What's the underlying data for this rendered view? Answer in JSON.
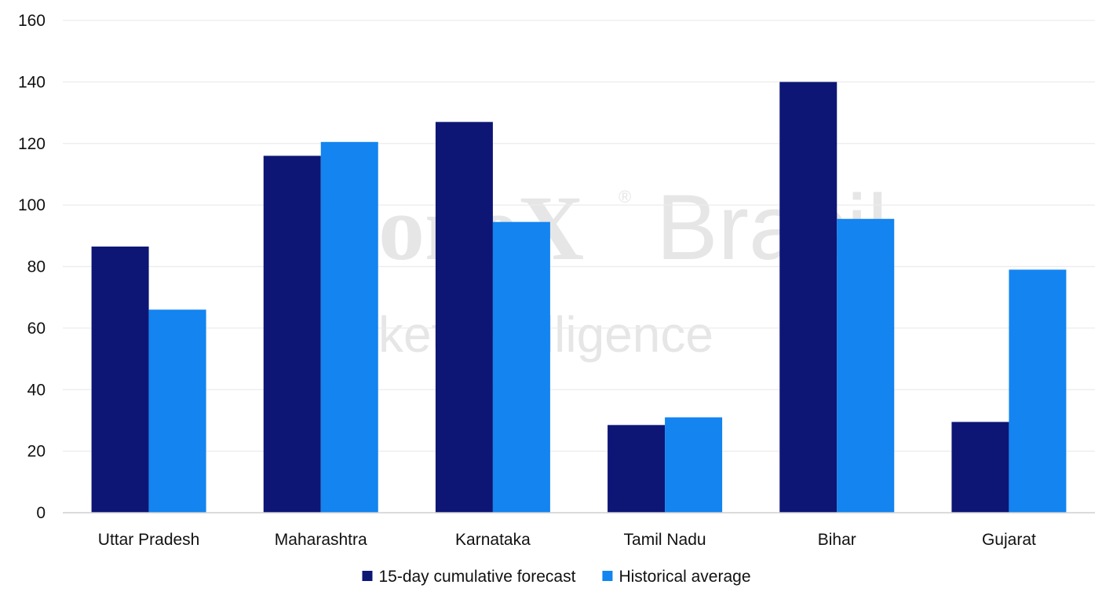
{
  "watermark": {
    "line1_part_a": "oneX",
    "line1_reg": "®",
    "line1_part_b": "Brasil",
    "line2": "ket Intelligence"
  },
  "chart_data": {
    "type": "bar",
    "title": "",
    "xlabel": "",
    "ylabel": "",
    "categories": [
      "Uttar Pradesh",
      "Maharashtra",
      "Karnataka",
      "Tamil Nadu",
      "Bihar",
      "Gujarat"
    ],
    "series": [
      {
        "name": "15-day cumulative forecast",
        "color": "#0d1675",
        "values": [
          86.5,
          116,
          127,
          28.5,
          140,
          29.5
        ]
      },
      {
        "name": "Historical average",
        "color": "#1384f0",
        "values": [
          66,
          120.5,
          94.5,
          31,
          95.5,
          79
        ]
      }
    ],
    "ylim": [
      0,
      160
    ],
    "yticks": [
      0,
      20,
      40,
      60,
      80,
      100,
      120,
      140,
      160
    ],
    "grid": true,
    "legend_position": "bottom-center"
  }
}
